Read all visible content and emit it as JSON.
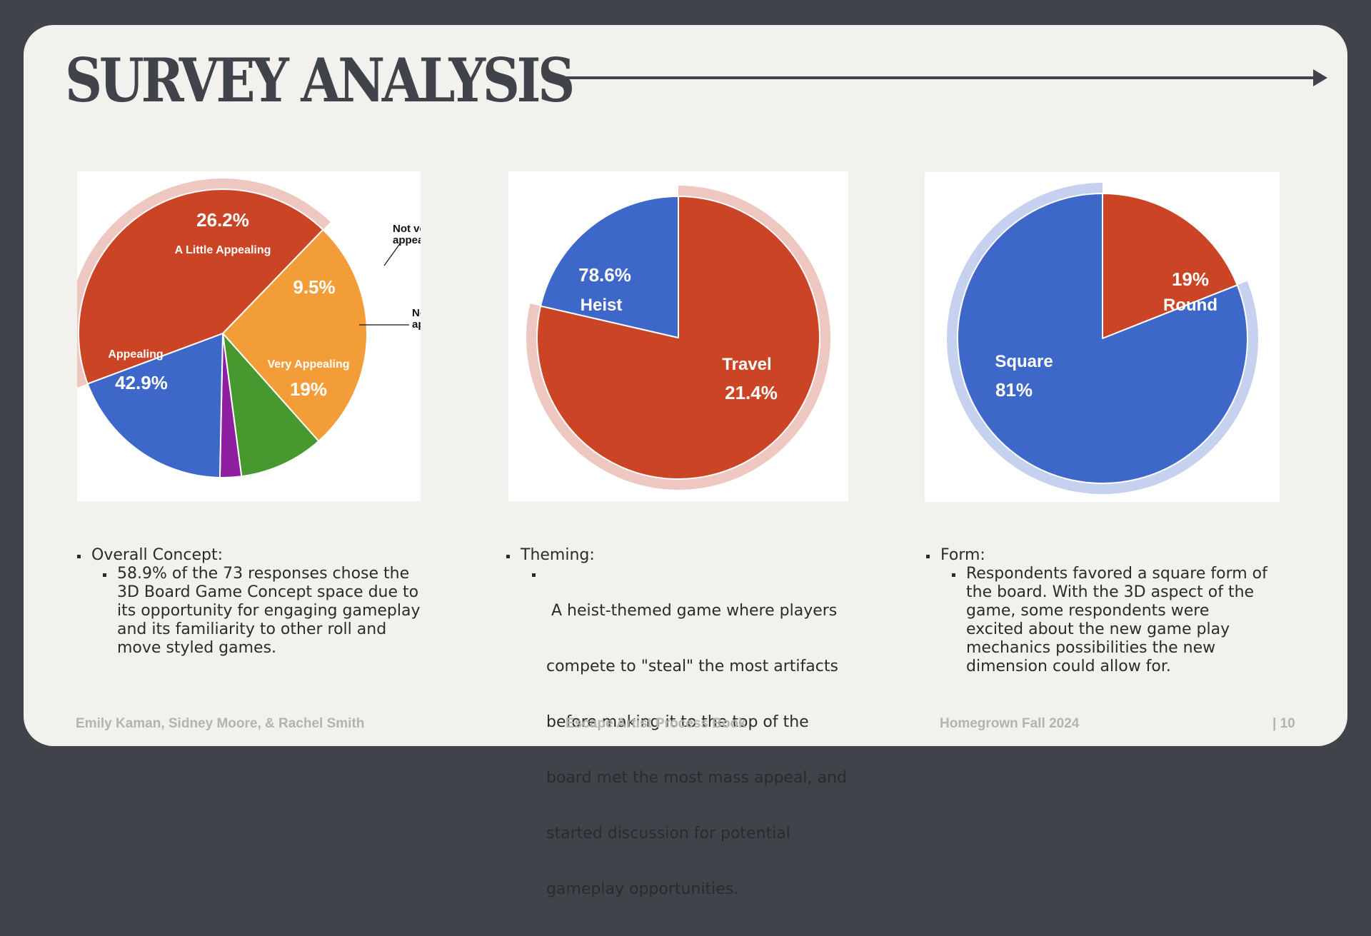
{
  "title": "SURVEY ANALYSIS",
  "chart_data": [
    {
      "type": "pie",
      "slices": [
        {
          "label": "A Little Appealing",
          "value": 26.2,
          "display": "26.2%",
          "color": "#f39d38"
        },
        {
          "label": "Not very appealing",
          "value": 9.5,
          "display": "9.5%",
          "color": "#47992f"
        },
        {
          "label": "Not at all appealing",
          "value": 2.4,
          "display": "",
          "color": "#8d1fa0"
        },
        {
          "label": "Very Appealing",
          "value": 19,
          "display": "19%",
          "color": "#3d67c9"
        },
        {
          "label": "Appealing",
          "value": 42.9,
          "display": "42.9%",
          "color": "#cc4426"
        }
      ],
      "highlight": "Appealing",
      "highlight_color": "#efc7c1"
    },
    {
      "type": "pie",
      "slices": [
        {
          "label": "Heist",
          "value": 78.6,
          "display": "78.6%",
          "color": "#cc4426"
        },
        {
          "label": "Travel",
          "value": 21.4,
          "display": "21.4%",
          "color": "#3d67c9"
        }
      ],
      "highlight": "Heist",
      "highlight_color": "#efc7c1"
    },
    {
      "type": "pie",
      "slices": [
        {
          "label": "Round",
          "value": 19,
          "display": "19%",
          "color": "#cc4426"
        },
        {
          "label": "Square",
          "value": 81,
          "display": "81%",
          "color": "#3d67c9"
        }
      ],
      "highlight": "Square",
      "highlight_color": "#c5d1ef"
    }
  ],
  "external_labels": {
    "not_very": [
      "Not very",
      "appealing"
    ],
    "not_at_all": [
      "Not at all",
      "appealing"
    ]
  },
  "sections": [
    {
      "heading": "Overall Concept:",
      "lines": [
        "58.9% of the 73 responses chose the",
        "3D Board Game Concept space due to",
        "its opportunity for engaging gameplay",
        "and its familiarity to other roll and",
        "move styled games."
      ]
    },
    {
      "heading": "Theming:",
      "lines": [
        " A heist-themed game where players",
        "compete to \"steal\" the most artifacts",
        "before making it to the top of the",
        "board met the most mass appeal, and",
        "started discussion for potential",
        "gameplay opportunities."
      ]
    },
    {
      "heading": "Form:",
      "lines": [
        "Respondents favored a square form of",
        "the board. With the 3D aspect of the",
        "game, some respondents were",
        "excited about the new game play",
        "mechanics possibilities the new",
        "dimension could allow for."
      ]
    }
  ],
  "footer": {
    "authors": "Emily Kaman, Sidney Moore, & Rachel Smith",
    "book": "Escape Artist Process Book",
    "term": "Homegrown Fall 2024",
    "page": "| 10"
  }
}
